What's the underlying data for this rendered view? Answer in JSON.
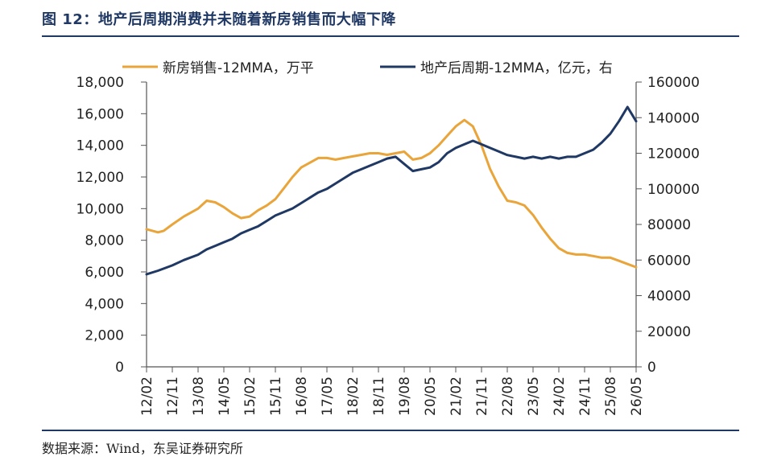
{
  "figure_title": "图 12：地产后周期消费并未随着新房销售而大幅下降",
  "source": "数据来源：Wind，东吴证券研究所",
  "colors": {
    "sales": "#e9a43a",
    "post_cycle": "#1f3864",
    "title": "#1f3864"
  },
  "chart_data": {
    "type": "line",
    "title": "",
    "legend_position": "top",
    "grid": false,
    "x_ticks": [
      "12/02",
      "12/11",
      "13/08",
      "14/05",
      "15/02",
      "15/11",
      "16/08",
      "17/05",
      "18/02",
      "18/11",
      "19/08",
      "20/05",
      "21/02",
      "21/11",
      "22/08",
      "23/05",
      "24/02",
      "24/11",
      "25/08",
      "26/05"
    ],
    "left_axis": {
      "ylim": [
        0,
        18000
      ],
      "ticks": [
        "0",
        "2,000",
        "4,000",
        "6,000",
        "8,000",
        "10,000",
        "12,000",
        "14,000",
        "16,000",
        "18,000"
      ]
    },
    "right_axis": {
      "ylim": [
        0,
        160000
      ],
      "ticks": [
        "0",
        "20000",
        "40000",
        "60000",
        "80000",
        "100000",
        "120000",
        "140000",
        "160000"
      ]
    },
    "series": [
      {
        "name": "新房销售-12MMA，万平",
        "axis": "left",
        "x": [
          "2012-02",
          "2012-06",
          "2012-08",
          "2012-11",
          "2013-03",
          "2013-08",
          "2013-11",
          "2014-02",
          "2014-05",
          "2014-08",
          "2014-11",
          "2015-02",
          "2015-05",
          "2015-08",
          "2015-11",
          "2016-02",
          "2016-05",
          "2016-08",
          "2016-11",
          "2017-02",
          "2017-05",
          "2017-08",
          "2017-11",
          "2018-02",
          "2018-05",
          "2018-08",
          "2018-11",
          "2019-02",
          "2019-05",
          "2019-08",
          "2019-11",
          "2020-02",
          "2020-05",
          "2020-08",
          "2020-11",
          "2021-02",
          "2021-05",
          "2021-08",
          "2021-11",
          "2022-02",
          "2022-05",
          "2022-08",
          "2022-11",
          "2023-02",
          "2023-05",
          "2023-08",
          "2023-11",
          "2024-02",
          "2024-05",
          "2024-08",
          "2024-11",
          "2025-02",
          "2025-05",
          "2025-08",
          "2025-11",
          "2026-02",
          "2026-05"
        ],
        "values": [
          8700,
          8500,
          8600,
          9000,
          9500,
          10000,
          10500,
          10400,
          10100,
          9700,
          9400,
          9500,
          9900,
          10200,
          10600,
          11300,
          12000,
          12600,
          12900,
          13200,
          13200,
          13100,
          13200,
          13300,
          13400,
          13500,
          13500,
          13400,
          13500,
          13600,
          13100,
          13200,
          13500,
          14000,
          14600,
          15200,
          15600,
          15200,
          14000,
          12500,
          11400,
          10500,
          10400,
          10200,
          9600,
          8800,
          8100,
          7500,
          7200,
          7100,
          7100,
          7000,
          6900,
          6900,
          6700,
          6500,
          6300
        ]
      },
      {
        "name": "地产后周期-12MMA，亿元，右",
        "axis": "right",
        "x": [
          "2012-02",
          "2012-06",
          "2012-11",
          "2013-03",
          "2013-08",
          "2013-11",
          "2014-02",
          "2014-05",
          "2014-08",
          "2014-11",
          "2015-02",
          "2015-05",
          "2015-08",
          "2015-11",
          "2016-02",
          "2016-05",
          "2016-08",
          "2016-11",
          "2017-02",
          "2017-05",
          "2017-08",
          "2017-11",
          "2018-02",
          "2018-05",
          "2018-08",
          "2018-11",
          "2019-02",
          "2019-05",
          "2019-08",
          "2019-11",
          "2020-02",
          "2020-05",
          "2020-08",
          "2020-11",
          "2021-02",
          "2021-05",
          "2021-08",
          "2021-11",
          "2022-02",
          "2022-05",
          "2022-08",
          "2022-11",
          "2023-02",
          "2023-05",
          "2023-08",
          "2023-11",
          "2024-02",
          "2024-05",
          "2024-08",
          "2024-11",
          "2025-02",
          "2025-05",
          "2025-08",
          "2025-11",
          "2026-02",
          "2026-05"
        ],
        "values": [
          52000,
          54000,
          57000,
          60000,
          63000,
          66000,
          68000,
          70000,
          72000,
          75000,
          77000,
          79000,
          82000,
          85000,
          87000,
          89000,
          92000,
          95000,
          98000,
          100000,
          103000,
          106000,
          109000,
          111000,
          113000,
          115000,
          117000,
          118000,
          114000,
          110000,
          111000,
          112000,
          115000,
          120000,
          123000,
          125000,
          127000,
          125000,
          123000,
          121000,
          119000,
          118000,
          117000,
          118000,
          117000,
          118000,
          117000,
          118000,
          118000,
          120000,
          122000,
          126000,
          131000,
          138000,
          146000,
          138000
        ]
      }
    ]
  }
}
